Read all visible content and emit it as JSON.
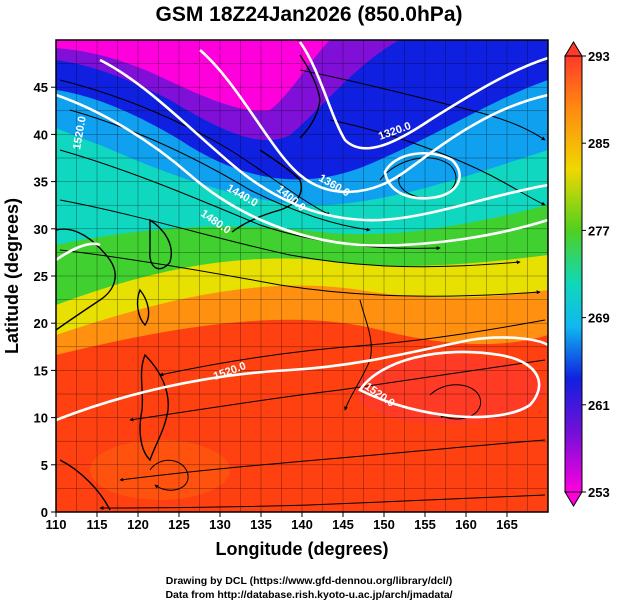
{
  "title": "GSM 18Z24Jan2026 (850.0hPa)",
  "x_axis": {
    "label": "Longitude (degrees)",
    "range": [
      110,
      170
    ],
    "ticks": [
      "110",
      "115",
      "120",
      "125",
      "130",
      "135",
      "140",
      "145",
      "150",
      "155",
      "160",
      "165"
    ]
  },
  "y_axis": {
    "label": "Latitude (degrees)",
    "range": [
      0,
      50
    ],
    "ticks": [
      "0",
      "5",
      "10",
      "15",
      "20",
      "25",
      "30",
      "35",
      "40",
      "45"
    ]
  },
  "colorbar": {
    "range": [
      253,
      293
    ],
    "ticks": [
      "253",
      "261",
      "269",
      "277",
      "285",
      "293"
    ]
  },
  "contour_labels": [
    "1520.0",
    "1440.0",
    "1400.0",
    "1360.0",
    "1320.0",
    "1480.0",
    "1520.0",
    "1520.0"
  ],
  "colors": {
    "cold": "#ff00dd",
    "cool": "#1020e0",
    "mild": "#00dddd",
    "warm": "#30d030",
    "hot": "#ff3010",
    "contour": "#ffffff",
    "coast": "#000000"
  },
  "credits": {
    "line1": "Drawing by DCL (https://www.gfd-dennou.org/library/dcl/)",
    "line2": "Data from http://database.rish.kyoto-u.ac.jp/arch/jmadata/"
  }
}
